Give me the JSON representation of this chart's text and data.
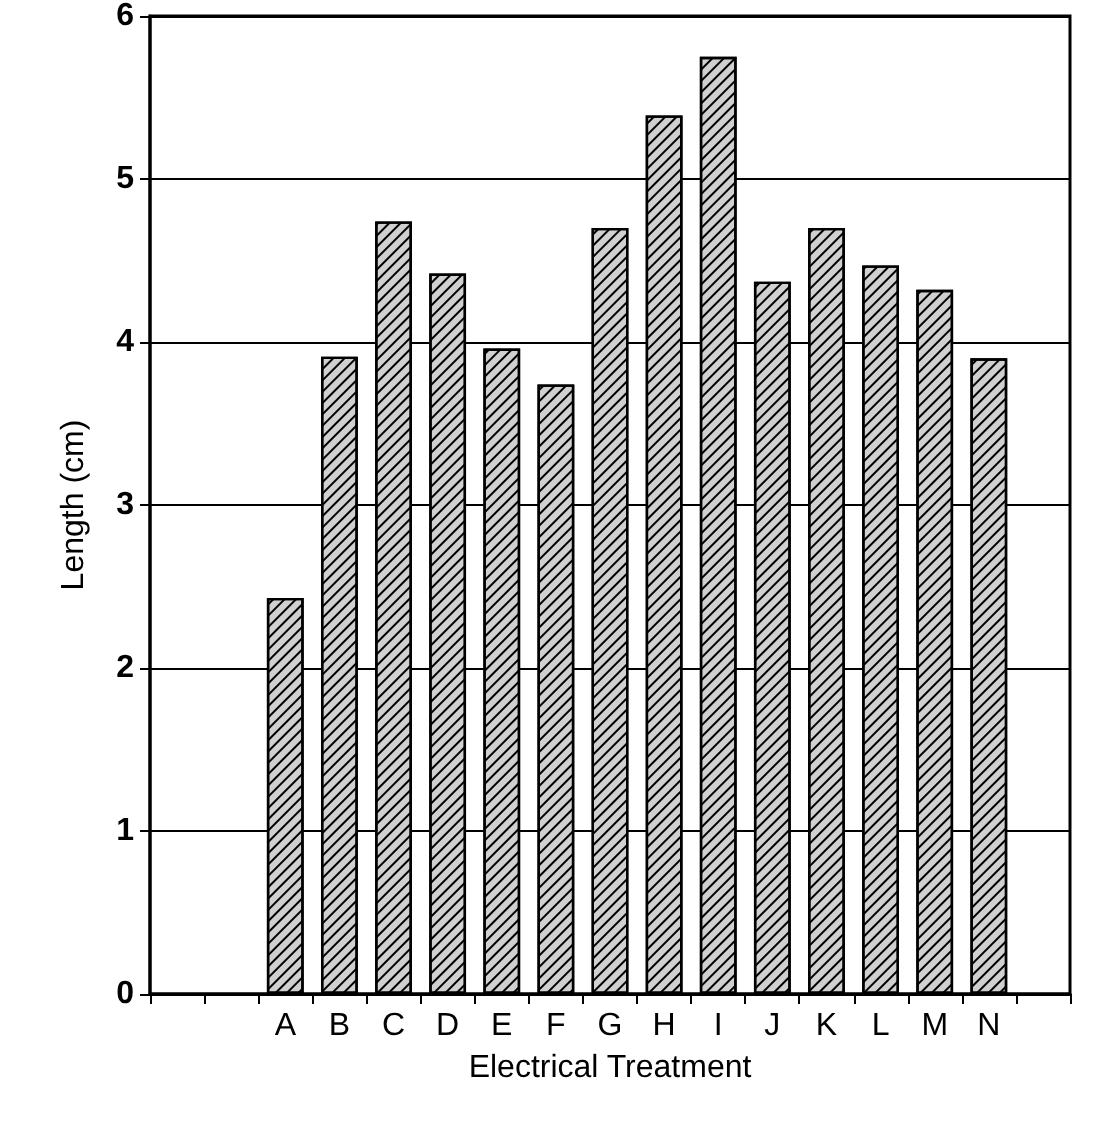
{
  "chart_data": {
    "type": "bar",
    "xlabel": "Electrical Treatment",
    "ylabel": "Length (cm)",
    "categories": [
      null,
      null,
      "A",
      "B",
      "C",
      "D",
      "E",
      "F",
      "G",
      "H",
      "I",
      "J",
      "K",
      "L",
      "M",
      "N",
      null
    ],
    "series": [
      {
        "color": "#d0d0d0",
        "values": [
          null,
          null,
          2.43,
          3.91,
          4.74,
          4.42,
          3.96,
          3.74,
          4.7,
          5.39,
          5.75,
          4.37,
          4.7,
          4.47,
          4.32,
          3.9,
          null
        ]
      }
    ],
    "ylim": [
      0,
      6
    ],
    "yticks": [
      0,
      1,
      2,
      3,
      4,
      5,
      6
    ],
    "grid": "y"
  }
}
